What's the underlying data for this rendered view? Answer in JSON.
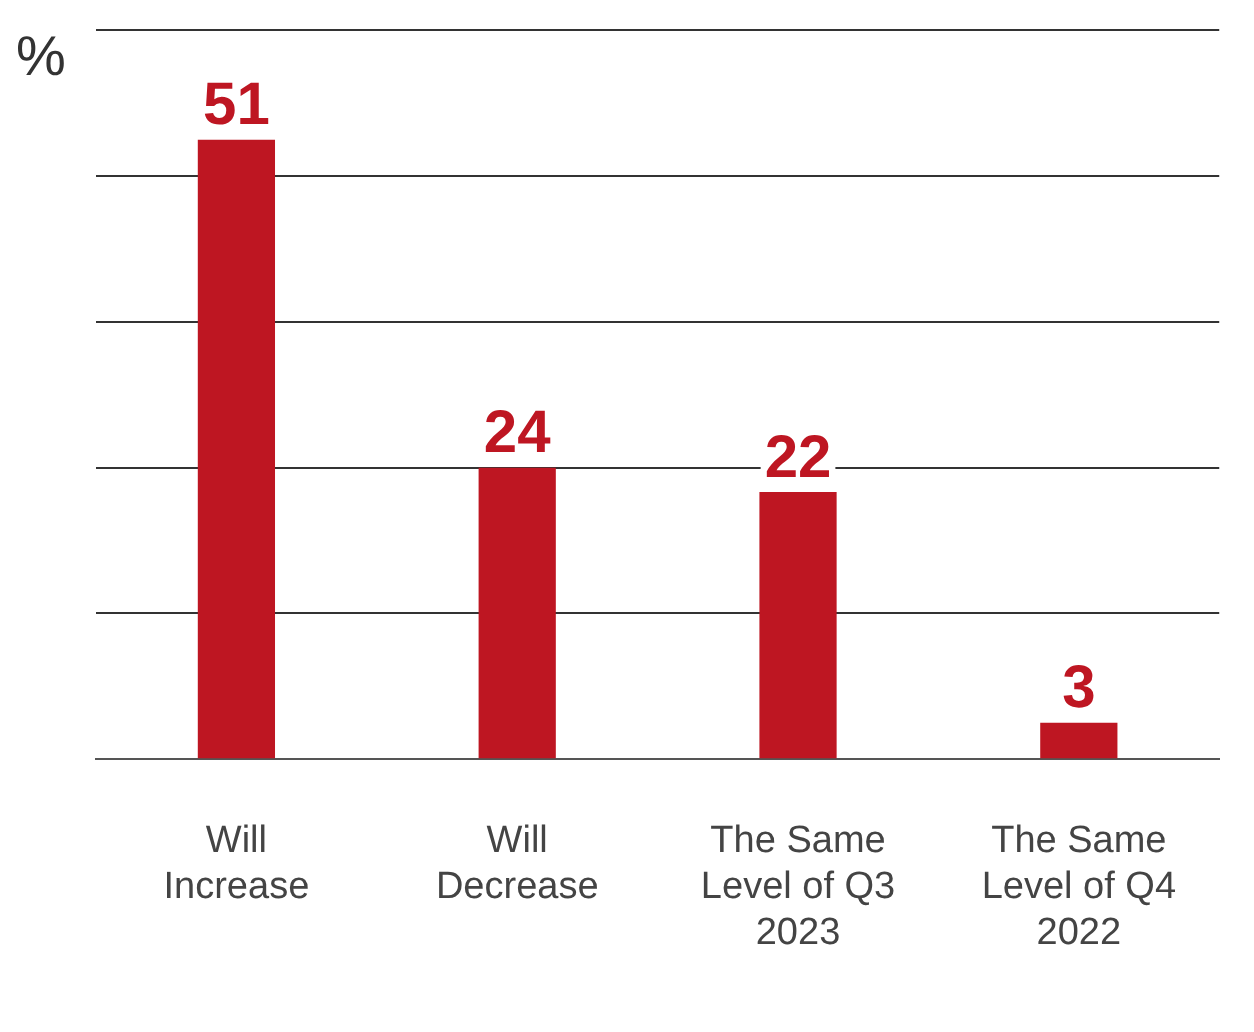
{
  "chart_data": {
    "type": "bar",
    "ylabel": "%",
    "categories": [
      "Will Increase",
      "Will Decrease",
      "The Same Level of Q3 2023",
      "The Same Level of Q4 2022"
    ],
    "values": [
      51,
      24,
      22,
      3
    ],
    "color": "#be1622",
    "data_labels": true,
    "ylim": [
      0,
      60
    ],
    "yticks": [
      {
        "value": 0,
        "label": null
      },
      {
        "value": 12,
        "label": null
      },
      {
        "value": 24,
        "label": null
      },
      {
        "value": 36,
        "label": null
      },
      {
        "value": 48,
        "label": null
      },
      {
        "value": 60,
        "label": null
      }
    ],
    "grid": "y",
    "legend": false
  }
}
